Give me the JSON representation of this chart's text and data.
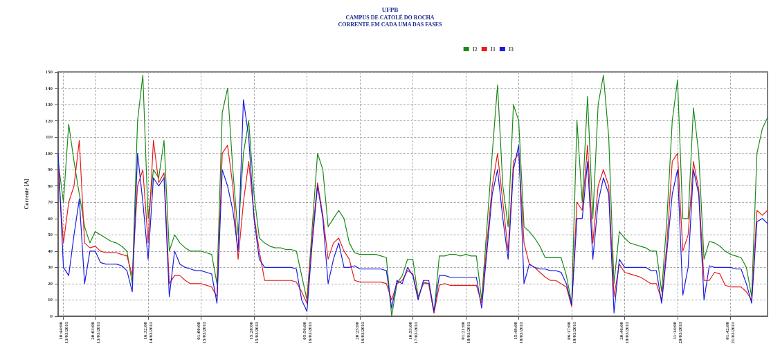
{
  "chart_data": {
    "type": "line",
    "title": "UFPB",
    "subtitle": "CAMPUS DE CATOLÉ DO ROCHA\nCORRENTE EM CADA UMA DAS FASES",
    "ylabel": "Corrente [A]",
    "categories": [
      null,
      "10:44:00 13/03/2011",
      null,
      null,
      null,
      null,
      null,
      "20:03:00 13/03/2011",
      null,
      null,
      null,
      null,
      null,
      null,
      null,
      null,
      null,
      "16:32:00 14/03/2011",
      null,
      null,
      null,
      null,
      null,
      null,
      null,
      null,
      null,
      "01:00:00 15/03/2011",
      null,
      null,
      null,
      null,
      null,
      null,
      null,
      null,
      null,
      "15:28:00 15/03/2011",
      null,
      null,
      null,
      null,
      null,
      null,
      null,
      null,
      null,
      "05:56:00 16/03/2011",
      null,
      null,
      null,
      null,
      null,
      null,
      null,
      null,
      null,
      "20:25:00 16/03/2011",
      null,
      null,
      null,
      null,
      null,
      null,
      null,
      null,
      null,
      "10:53:00 17/03/2011",
      null,
      null,
      null,
      null,
      null,
      null,
      null,
      null,
      null,
      "01:21:00 18/03/2011",
      null,
      null,
      null,
      null,
      null,
      null,
      null,
      null,
      null,
      "15:49:00 18/03/2011",
      null,
      null,
      null,
      null,
      null,
      null,
      null,
      null,
      null,
      "06:17:00 19/03/2011",
      null,
      null,
      null,
      null,
      null,
      null,
      null,
      null,
      null,
      "20:46:00 19/03/2011",
      null,
      null,
      null,
      null,
      null,
      null,
      null,
      null,
      null,
      "11:14:00 20/03/2011",
      null,
      null,
      null,
      null,
      null,
      null,
      null,
      null,
      null,
      "01:42:00 21/03/2011",
      null,
      null,
      null,
      null,
      null,
      null,
      null
    ],
    "series": [
      {
        "name": "I2",
        "color": "#1a8a1a",
        "values": [
          95,
          70,
          118,
          95,
          75,
          55,
          45,
          52,
          50,
          48,
          46,
          45,
          43,
          40,
          20,
          120,
          148,
          60,
          90,
          85,
          108,
          40,
          50,
          45,
          42,
          40,
          40,
          40,
          39,
          38,
          20,
          125,
          140,
          90,
          50,
          100,
          120,
          75,
          48,
          45,
          43,
          42,
          42,
          41,
          41,
          40,
          25,
          10,
          55,
          100,
          90,
          55,
          60,
          65,
          60,
          45,
          39,
          38,
          38,
          38,
          38,
          37,
          36,
          0,
          20,
          25,
          35,
          35,
          12,
          20,
          20,
          2,
          37,
          37,
          38,
          38,
          37,
          38,
          37,
          37,
          10,
          55,
          100,
          142,
          80,
          55,
          130,
          120,
          55,
          52,
          48,
          43,
          36,
          36,
          36,
          36,
          25,
          8,
          120,
          70,
          135,
          60,
          130,
          148,
          110,
          20,
          52,
          48,
          45,
          44,
          43,
          42,
          40,
          40,
          15,
          60,
          120,
          145,
          60,
          60,
          128,
          100,
          35,
          46,
          45,
          43,
          40,
          38,
          37,
          36,
          30,
          12,
          100,
          115,
          122
        ]
      },
      {
        "name": "I1",
        "color": "#e81c1c",
        "values": [
          90,
          45,
          70,
          80,
          108,
          45,
          42,
          43,
          40,
          39,
          39,
          39,
          38,
          37,
          25,
          80,
          90,
          45,
          108,
          82,
          88,
          20,
          25,
          25,
          22,
          20,
          20,
          20,
          19,
          18,
          12,
          100,
          105,
          80,
          35,
          70,
          95,
          62,
          40,
          22,
          22,
          22,
          22,
          22,
          22,
          21,
          15,
          8,
          50,
          82,
          62,
          35,
          45,
          48,
          40,
          35,
          22,
          21,
          21,
          21,
          21,
          21,
          20,
          10,
          20,
          22,
          28,
          26,
          11,
          21,
          20,
          2,
          19,
          20,
          19,
          19,
          19,
          19,
          19,
          19,
          8,
          45,
          80,
          100,
          70,
          40,
          95,
          100,
          45,
          32,
          30,
          27,
          24,
          22,
          22,
          20,
          18,
          6,
          70,
          65,
          105,
          45,
          80,
          90,
          80,
          12,
          32,
          27,
          26,
          25,
          24,
          22,
          20,
          20,
          10,
          45,
          95,
          100,
          40,
          50,
          95,
          78,
          22,
          22,
          27,
          26,
          19,
          18,
          18,
          18,
          15,
          10,
          65,
          62,
          65
        ]
      },
      {
        "name": "I3",
        "color": "#1c1ce0",
        "values": [
          100,
          30,
          25,
          50,
          72,
          20,
          40,
          40,
          33,
          32,
          32,
          32,
          31,
          28,
          15,
          100,
          70,
          35,
          85,
          80,
          85,
          12,
          40,
          32,
          30,
          29,
          28,
          28,
          27,
          26,
          8,
          90,
          80,
          65,
          40,
          133,
          110,
          60,
          35,
          30,
          30,
          30,
          30,
          30,
          30,
          29,
          10,
          3,
          45,
          80,
          60,
          20,
          35,
          45,
          30,
          30,
          31,
          29,
          29,
          29,
          29,
          29,
          28,
          5,
          22,
          20,
          30,
          25,
          10,
          22,
          22,
          3,
          25,
          25,
          24,
          24,
          24,
          24,
          24,
          24,
          5,
          40,
          75,
          90,
          60,
          35,
          90,
          105,
          20,
          32,
          30,
          29,
          29,
          28,
          28,
          27,
          20,
          7,
          60,
          60,
          95,
          35,
          70,
          85,
          75,
          2,
          35,
          30,
          30,
          30,
          30,
          30,
          28,
          28,
          8,
          40,
          75,
          90,
          13,
          30,
          90,
          75,
          10,
          31,
          30,
          30,
          30,
          30,
          29,
          29,
          20,
          8,
          58,
          60,
          57
        ]
      }
    ],
    "ylim": [
      0,
      150
    ],
    "yticks": [
      0,
      10,
      20,
      30,
      40,
      50,
      60,
      70,
      80,
      90,
      100,
      110,
      120,
      130,
      140,
      150
    ],
    "grid": true,
    "legend": "top right"
  }
}
